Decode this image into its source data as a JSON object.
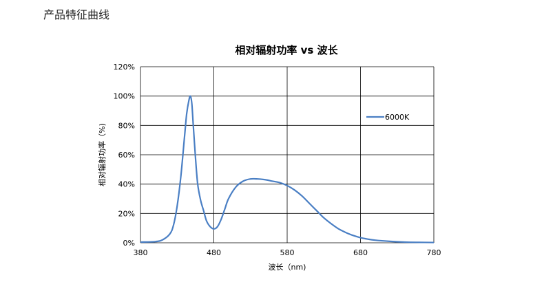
{
  "page": {
    "section_title": "产品特征曲线"
  },
  "chart_data": {
    "type": "line",
    "title": "相对辐射功率 vs 波长",
    "xlabel": "波长（nm)",
    "ylabel": "相对辐射功率（%)",
    "xlim": [
      380,
      780
    ],
    "ylim": [
      0,
      120
    ],
    "x_ticks": [
      380,
      480,
      580,
      680,
      780
    ],
    "y_ticks": [
      0,
      20,
      40,
      60,
      80,
      100,
      120
    ],
    "y_tick_labels": [
      "0%",
      "20%",
      "40%",
      "60%",
      "80%",
      "100%",
      "120%"
    ],
    "grid": true,
    "legend_position": "right",
    "series": [
      {
        "name": "6000K",
        "color": "#4a7fc4",
        "x": [
          380,
          400,
          410,
          420,
          425,
          430,
          435,
          440,
          443,
          446,
          448,
          450,
          452,
          455,
          458,
          462,
          466,
          470,
          475,
          480,
          485,
          490,
          495,
          500,
          510,
          520,
          530,
          540,
          550,
          560,
          570,
          580,
          590,
          600,
          610,
          620,
          630,
          640,
          650,
          660,
          670,
          680,
          690,
          700,
          720,
          740,
          760,
          780
        ],
        "y": [
          0.5,
          0.8,
          2,
          6,
          12,
          25,
          45,
          72,
          88,
          97,
          100,
          95,
          80,
          58,
          40,
          29,
          22,
          15,
          11,
          9.5,
          11,
          16,
          23,
          30,
          38,
          42,
          43.5,
          43.5,
          43,
          42,
          41,
          39,
          36,
          32,
          27,
          22,
          17,
          13,
          9.5,
          7,
          5,
          3.5,
          2.5,
          1.8,
          1,
          0.5,
          0.3,
          0.2
        ]
      }
    ]
  }
}
